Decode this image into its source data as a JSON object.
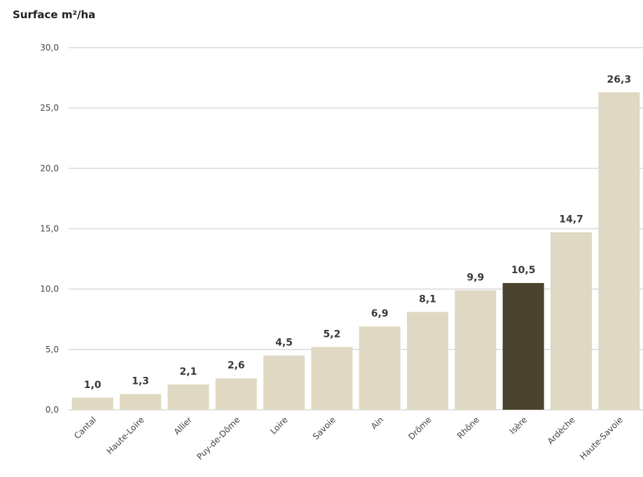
{
  "chart_data": {
    "type": "bar",
    "title": "Surface m²/ha",
    "categories": [
      "Cantal",
      "Haute-Loire",
      "Allier",
      "Puy-de-Dôme",
      "Loire",
      "Savoie",
      "Ain",
      "Drôme",
      "Rhône",
      "Isère",
      "Ardèche",
      "Haute-Savoie"
    ],
    "values": [
      1.0,
      1.3,
      2.1,
      2.6,
      4.5,
      5.2,
      6.9,
      8.1,
      9.9,
      10.5,
      14.7,
      26.3
    ],
    "value_labels": [
      "1,0",
      "1,3",
      "2,1",
      "2,6",
      "4,5",
      "5,2",
      "6,9",
      "8,1",
      "9,9",
      "10,5",
      "14,7",
      "26,3"
    ],
    "ylim": [
      0,
      30
    ],
    "yticks": [
      0,
      5,
      10,
      15,
      20,
      25,
      30
    ],
    "ytick_labels": [
      "0,0",
      "5,0",
      "10,0",
      "15,0",
      "20,0",
      "25,0",
      "30,0"
    ],
    "grid": true,
    "highlight_category": "Isère",
    "colors": {
      "bar": "#dfd8c2",
      "highlight": "#4a442e",
      "grid": "#d9d9d9"
    }
  }
}
